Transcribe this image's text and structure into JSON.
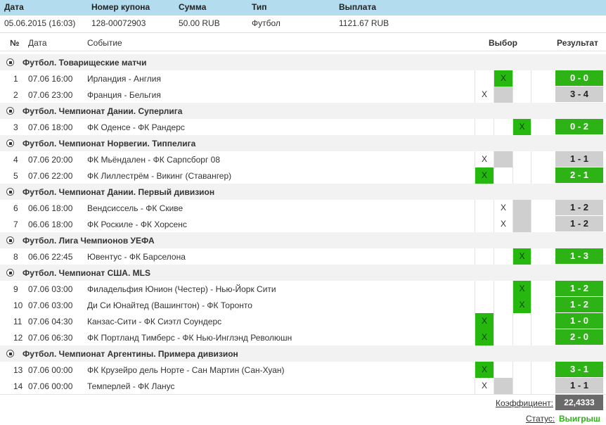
{
  "header": {
    "date_label": "Дата",
    "coupon_label": "Номер купона",
    "sum_label": "Сумма",
    "type_label": "Тип",
    "payout_label": "Выплата"
  },
  "info": {
    "date": "05.06.2015 (16:03)",
    "coupon": "128-00072903",
    "sum": "50.00 RUB",
    "type": "Футбол",
    "payout": "1121.67 RUB"
  },
  "columns": {
    "num": "№",
    "date": "Дата",
    "event": "Событие",
    "choice": "Выбор",
    "result": "Результат"
  },
  "choice_mark": "X",
  "colors": {
    "win_green": "#2db316",
    "loss_gray": "#cfcfcf",
    "header_blue": "#b3dcef"
  },
  "sections": [
    {
      "title": "Футбол. Товарищеские матчи",
      "rows": [
        {
          "num": "1",
          "date": "07.06 16:00",
          "event": "Ирландия - Англия",
          "pick": 2,
          "result": "0 - 0",
          "won": true
        },
        {
          "num": "2",
          "date": "07.06 23:00",
          "event": "Франция - Бельгия",
          "pick": 1,
          "result": "3 - 4",
          "won": false
        }
      ]
    },
    {
      "title": "Футбол. Чемпионат Дании. Суперлига",
      "rows": [
        {
          "num": "3",
          "date": "07.06 18:00",
          "event": "ФК Оденсе - ФК Рандерс",
          "pick": 3,
          "result": "0 - 2",
          "won": true
        }
      ]
    },
    {
      "title": "Футбол. Чемпионат Норвегии. Типпелига",
      "rows": [
        {
          "num": "4",
          "date": "07.06 20:00",
          "event": "ФК Мьёндален - ФК Сарпсборг 08",
          "pick": 1,
          "result": "1 - 1",
          "won": false
        },
        {
          "num": "5",
          "date": "07.06 22:00",
          "event": "ФК Лиллестрём - Викинг (Ставангер)",
          "pick": 1,
          "result": "2 - 1",
          "won": true
        }
      ]
    },
    {
      "title": "Футбол. Чемпионат Дании. Первый дивизион",
      "rows": [
        {
          "num": "6",
          "date": "06.06 18:00",
          "event": "Вендсиссель - ФК Скиве",
          "pick": 2,
          "result": "1 - 2",
          "won": false
        },
        {
          "num": "7",
          "date": "06.06 18:00",
          "event": "ФК Роскиле - ФК Хорсенс",
          "pick": 2,
          "result": "1 - 2",
          "won": false
        }
      ]
    },
    {
      "title": "Футбол. Лига Чемпионов УЕФА",
      "rows": [
        {
          "num": "8",
          "date": "06.06 22:45",
          "event": "Ювентус - ФК Барселона",
          "pick": 3,
          "result": "1 - 3",
          "won": true
        }
      ]
    },
    {
      "title": "Футбол. Чемпионат США. MLS",
      "rows": [
        {
          "num": "9",
          "date": "07.06 03:00",
          "event": "Филадельфия Юнион (Честер) - Нью-Йорк Сити",
          "pick": 3,
          "result": "1 - 2",
          "won": true
        },
        {
          "num": "10",
          "date": "07.06 03:00",
          "event": "Ди Си Юнайтед (Вашингтон) - ФК Торонто",
          "pick": 3,
          "result": "1 - 2",
          "won": true
        },
        {
          "num": "11",
          "date": "07.06 04:30",
          "event": "Канзас-Сити - ФК Сиэтл Соундерс",
          "pick": 1,
          "result": "1 - 0",
          "won": true
        },
        {
          "num": "12",
          "date": "07.06 06:30",
          "event": "ФК Портланд Тимберс - ФК Нью-Инглэнд Революшн",
          "pick": 1,
          "result": "2 - 0",
          "won": true
        }
      ]
    },
    {
      "title": "Футбол. Чемпионат Аргентины. Примера дивизион",
      "rows": [
        {
          "num": "13",
          "date": "07.06 00:00",
          "event": "ФК Крузейро дель Норте - Сан Мартин (Сан-Хуан)",
          "pick": 1,
          "result": "3 - 1",
          "won": true
        },
        {
          "num": "14",
          "date": "07.06 00:00",
          "event": "Темперлей - ФК Ланус",
          "pick": 1,
          "result": "1 - 1",
          "won": false
        }
      ]
    }
  ],
  "footer": {
    "coef_label": "Коэффициент:",
    "coef_value": "22,4333",
    "status_label": "Статус:",
    "status_value": "Выигрыш"
  }
}
